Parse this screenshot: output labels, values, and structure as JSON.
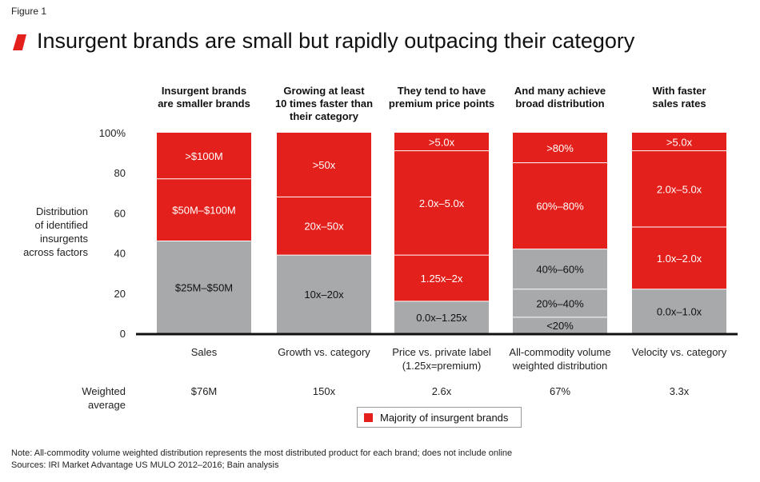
{
  "figure_label": "Figure 1",
  "title": "Insurgent brands are small but rapidly outpacing their category",
  "colors": {
    "majority": "#e3201b",
    "other": "#a7a9ab",
    "axis": "#111111",
    "divider": "#ffffff"
  },
  "chart_data": {
    "type": "bar",
    "stacked": true,
    "ylabel": "Distribution of identified insurgents across factors",
    "ylim": [
      0,
      100
    ],
    "yticks": [
      "0",
      "20",
      "40",
      "60",
      "80",
      "100%"
    ],
    "ytick_values": [
      0,
      20,
      40,
      60,
      80,
      100
    ],
    "columns": [
      {
        "header": [
          "Insurgent brands",
          "are smaller brands"
        ],
        "category": [
          "Sales"
        ],
        "weighted_average": "$76M",
        "segments": [
          {
            "label": "$25M–$50M",
            "value": 46,
            "majority": false
          },
          {
            "label": "$50M–$100M",
            "value": 31,
            "majority": true
          },
          {
            "label": ">$100M",
            "value": 23,
            "majority": true
          }
        ]
      },
      {
        "header": [
          "Growing at least",
          "10 times faster than",
          "their category"
        ],
        "category": [
          "Growth vs. category"
        ],
        "weighted_average": "150x",
        "segments": [
          {
            "label": "10x–20x",
            "value": 39,
            "majority": false
          },
          {
            "label": "20x–50x",
            "value": 29,
            "majority": true
          },
          {
            "label": ">50x",
            "value": 32,
            "majority": true
          }
        ]
      },
      {
        "header": [
          "They tend to have",
          "premium price points"
        ],
        "category": [
          "Price vs. private label",
          "(1.25x=premium)"
        ],
        "weighted_average": "2.6x",
        "segments": [
          {
            "label": "0.0x–1.25x",
            "value": 16,
            "majority": false
          },
          {
            "label": "1.25x–2x",
            "value": 23,
            "majority": true
          },
          {
            "label": "2.0x–5.0x",
            "value": 52,
            "majority": true
          },
          {
            "label": ">5.0x",
            "value": 9,
            "majority": true
          }
        ]
      },
      {
        "header": [
          "And many achieve",
          "broad distribution"
        ],
        "category": [
          "All-commodity volume",
          "weighted distribution"
        ],
        "weighted_average": "67%",
        "segments": [
          {
            "label": "<20%",
            "value": 8,
            "majority": false
          },
          {
            "label": "20%–40%",
            "value": 14,
            "majority": false
          },
          {
            "label": "40%–60%",
            "value": 20,
            "majority": false
          },
          {
            "label": "60%–80%",
            "value": 43,
            "majority": true
          },
          {
            "label": ">80%",
            "value": 15,
            "majority": true
          }
        ]
      },
      {
        "header": [
          "With faster",
          "sales rates"
        ],
        "category": [
          "Velocity vs. category"
        ],
        "weighted_average": "3.3x",
        "segments": [
          {
            "label": "0.0x–1.0x",
            "value": 22,
            "majority": false
          },
          {
            "label": "1.0x–2.0x",
            "value": 31,
            "majority": true
          },
          {
            "label": "2.0x–5.0x",
            "value": 38,
            "majority": true
          },
          {
            "label": ">5.0x",
            "value": 9,
            "majority": true
          }
        ]
      }
    ],
    "weighted_average_label": [
      "Weighted",
      "average"
    ],
    "legend": "Majority of insurgent brands"
  },
  "notes": {
    "note": "Note: All-commodity volume weighted distribution represents the most distributed product for each brand; does not include online",
    "sources": "Sources: IRI Market Advantage US MULO 2012–2016; Bain analysis"
  }
}
